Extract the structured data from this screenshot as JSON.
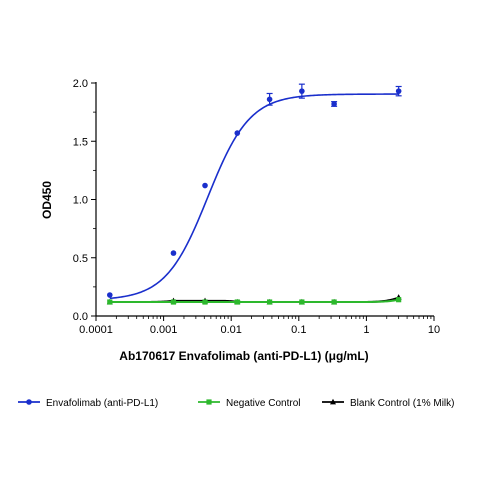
{
  "chart_data": {
    "type": "line",
    "title": "",
    "xlabel": "Ab170617 Envafolimab (anti-PD-L1) (μg/mL)",
    "ylabel": "OD450",
    "x_scale": "log",
    "xlim": [
      0.0001,
      10
    ],
    "ylim": [
      0,
      2.0
    ],
    "x_ticks": [
      {
        "value": 0.0001,
        "label": "0.0001"
      },
      {
        "value": 0.001,
        "label": "0.001"
      },
      {
        "value": 0.01,
        "label": "0.01"
      },
      {
        "value": 0.1,
        "label": "0.1"
      },
      {
        "value": 1,
        "label": "1"
      },
      {
        "value": 10,
        "label": "10"
      }
    ],
    "y_ticks": [
      {
        "value": 0,
        "label": "0.0"
      },
      {
        "value": 0.5,
        "label": "0.5"
      },
      {
        "value": 1.0,
        "label": "1.0"
      },
      {
        "value": 1.5,
        "label": "1.5"
      },
      {
        "value": 2.0,
        "label": "2.0"
      }
    ],
    "grid": false,
    "legend_position": "bottom",
    "series": [
      {
        "name": "Envafolimab (anti-PD-L1)",
        "color": "#1a2fcc",
        "marker": "circle",
        "x": [
          0.00016,
          0.0014,
          0.0041,
          0.0123,
          0.037,
          0.111,
          0.333,
          3.0
        ],
        "y": [
          0.18,
          0.54,
          1.12,
          1.57,
          1.86,
          1.93,
          1.82,
          1.93
        ],
        "err": [
          0.0,
          0.0,
          0.0,
          0.0,
          0.05,
          0.06,
          0.02,
          0.04
        ],
        "fit": {
          "bottom": 0.135,
          "top": 1.905,
          "ec50": 0.0045,
          "hill": 1.4
        }
      },
      {
        "name": "Negative Control",
        "color": "#2db82d",
        "marker": "square",
        "x": [
          0.00016,
          0.0014,
          0.0041,
          0.0123,
          0.037,
          0.111,
          0.333,
          3.0
        ],
        "y": [
          0.12,
          0.12,
          0.12,
          0.12,
          0.12,
          0.12,
          0.12,
          0.14
        ],
        "err": [
          0,
          0,
          0,
          0.01,
          0,
          0,
          0,
          0
        ]
      },
      {
        "name": "Blank Control (1% Milk)",
        "color": "#000000",
        "marker": "triangle",
        "x": [
          0.00016,
          0.0014,
          0.0041,
          0.0123,
          0.037,
          0.111,
          0.333,
          3.0
        ],
        "y": [
          0.12,
          0.13,
          0.13,
          0.12,
          0.12,
          0.12,
          0.12,
          0.16
        ],
        "err": [
          0,
          0,
          0,
          0,
          0,
          0,
          0,
          0
        ]
      }
    ]
  }
}
